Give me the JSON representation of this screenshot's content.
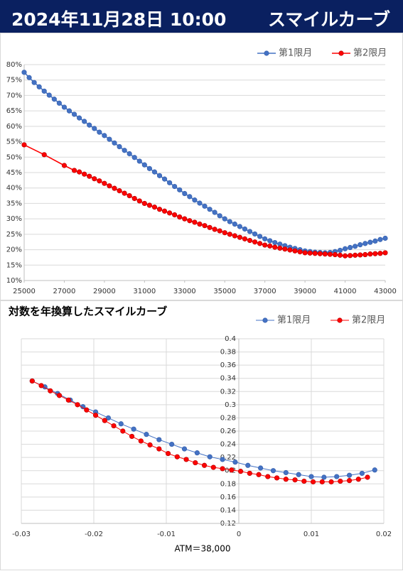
{
  "header": {
    "date": "2024年11月28日 10:00",
    "title": "スマイルカーブ"
  },
  "chart_data": [
    {
      "type": "line",
      "legend": "top-right",
      "grid": "y",
      "xlim": [
        25000,
        43000
      ],
      "xticks": [
        25000,
        27000,
        29000,
        31000,
        33000,
        35000,
        37000,
        39000,
        41000,
        43000
      ],
      "ylim": [
        10,
        80
      ],
      "yticks": [
        {
          "value": 10,
          "label": "10%"
        },
        {
          "value": 15,
          "label": "15%"
        },
        {
          "value": 20,
          "label": "20%"
        },
        {
          "value": 25,
          "label": "25%"
        },
        {
          "value": 30,
          "label": "30%"
        },
        {
          "value": 35,
          "label": "35%"
        },
        {
          "value": 40,
          "label": "40%"
        },
        {
          "value": 45,
          "label": "45%"
        },
        {
          "value": 50,
          "label": "50%"
        },
        {
          "value": 55,
          "label": "55%"
        },
        {
          "value": 60,
          "label": "60%"
        },
        {
          "value": 65,
          "label": "65%"
        },
        {
          "value": 70,
          "label": "70%"
        },
        {
          "value": 75,
          "label": "75%"
        },
        {
          "value": 80,
          "label": "80%"
        }
      ],
      "series": [
        {
          "name": "第1限月",
          "color": "#4472c4",
          "x": [
            25000,
            25250,
            25500,
            25750,
            26000,
            26250,
            26500,
            26750,
            27000,
            27250,
            27500,
            27750,
            28000,
            28250,
            28500,
            28750,
            29000,
            29250,
            29500,
            29750,
            30000,
            30250,
            30500,
            30750,
            31000,
            31250,
            31500,
            31750,
            32000,
            32250,
            32500,
            32750,
            33000,
            33250,
            33500,
            33750,
            34000,
            34250,
            34500,
            34750,
            35000,
            35250,
            35500,
            35750,
            36000,
            36250,
            36500,
            36750,
            37000,
            37250,
            37500,
            37750,
            38000,
            38250,
            38500,
            38750,
            39000,
            39250,
            39500,
            39750,
            40000,
            40250,
            40500,
            40750,
            41000,
            41250,
            41500,
            41750,
            42000,
            42250,
            42500,
            42750,
            43000
          ],
          "values": [
            77.5,
            75.8,
            74.2,
            72.8,
            71.4,
            70.1,
            68.8,
            67.5,
            66.2,
            65.0,
            63.9,
            62.7,
            61.6,
            60.4,
            59.3,
            58.1,
            57.0,
            55.8,
            54.6,
            53.4,
            52.2,
            51.1,
            49.9,
            48.7,
            47.5,
            46.3,
            45.2,
            44.0,
            42.9,
            41.7,
            40.5,
            39.4,
            38.2,
            37.2,
            36.1,
            35.1,
            34.1,
            33.1,
            32.1,
            31.0,
            30.0,
            29.1,
            28.3,
            27.5,
            26.7,
            25.9,
            25.1,
            24.3,
            23.5,
            22.9,
            22.3,
            21.8,
            21.3,
            20.8,
            20.4,
            20.0,
            19.6,
            19.4,
            19.2,
            19.1,
            19.0,
            19.1,
            19.4,
            19.8,
            20.3,
            20.7,
            21.1,
            21.6,
            22.0,
            22.4,
            22.8,
            23.3,
            23.7
          ]
        },
        {
          "name": "第2限月",
          "color": "#ff0000",
          "x": [
            25000,
            26000,
            27000,
            27500,
            27750,
            28000,
            28250,
            28500,
            28750,
            29000,
            29250,
            29500,
            29750,
            30000,
            30250,
            30500,
            30750,
            31000,
            31250,
            31500,
            31750,
            32000,
            32250,
            32500,
            32750,
            33000,
            33250,
            33500,
            33750,
            34000,
            34250,
            34500,
            34750,
            35000,
            35250,
            35500,
            35750,
            36000,
            36250,
            36500,
            36750,
            37000,
            37250,
            37500,
            37750,
            38000,
            38250,
            38500,
            38750,
            39000,
            39250,
            39500,
            39750,
            40000,
            40250,
            40500,
            40750,
            41000,
            41250,
            41500,
            41750,
            42000,
            42250,
            42500,
            42750,
            43000
          ],
          "values": [
            54.0,
            50.8,
            47.3,
            45.7,
            45.2,
            44.5,
            43.8,
            43.0,
            42.3,
            41.5,
            40.7,
            39.9,
            39.1,
            38.3,
            37.5,
            36.6,
            35.8,
            35.0,
            34.4,
            33.8,
            33.1,
            32.5,
            31.9,
            31.3,
            30.6,
            30.0,
            29.4,
            28.9,
            28.3,
            27.8,
            27.2,
            26.6,
            26.1,
            25.5,
            25.0,
            24.5,
            24.0,
            23.5,
            23.0,
            22.5,
            22.0,
            21.5,
            21.2,
            20.8,
            20.5,
            20.2,
            19.9,
            19.6,
            19.3,
            19.0,
            18.9,
            18.8,
            18.7,
            18.6,
            18.5,
            18.4,
            18.2,
            18.0,
            18.1,
            18.2,
            18.3,
            18.4,
            18.6,
            18.7,
            18.8,
            19.0
          ]
        }
      ]
    },
    {
      "type": "line",
      "title": "対数を年換算したスマイルカーブ",
      "x_label": "ATM＝38,000",
      "legend": "top-right",
      "grid": "both",
      "xlim": [
        -0.03,
        0.02
      ],
      "xticks": [
        -0.03,
        -0.02,
        -0.01,
        0,
        0.01,
        0.02
      ],
      "ylim": [
        0.12,
        0.4
      ],
      "yticks": [
        0.12,
        0.14,
        0.16,
        0.18,
        0.2,
        0.22,
        0.24,
        0.26,
        0.28,
        0.3,
        0.32,
        0.34,
        0.36,
        0.38,
        0.4
      ],
      "series": [
        {
          "name": "第1限月",
          "color": "#4472c4",
          "x": [
            -0.0285,
            -0.02675,
            -0.025,
            -0.02325,
            -0.0215,
            -0.01975,
            -0.018,
            -0.01625,
            -0.0145,
            -0.01275,
            -0.011,
            -0.00925,
            -0.0075,
            -0.00575,
            -0.004,
            -0.00225,
            -0.0005,
            0.00125,
            0.003,
            0.00475,
            0.0065,
            0.00825,
            0.01,
            0.01175,
            0.0135,
            0.01525,
            0.017,
            0.01875
          ],
          "values": [
            0.336,
            0.327,
            0.317,
            0.307,
            0.297,
            0.289,
            0.28,
            0.271,
            0.263,
            0.255,
            0.247,
            0.24,
            0.233,
            0.227,
            0.221,
            0.217,
            0.213,
            0.208,
            0.204,
            0.2,
            0.197,
            0.194,
            0.191,
            0.19,
            0.191,
            0.193,
            0.196,
            0.201
          ]
        },
        {
          "name": "第2限月",
          "color": "#ff0000",
          "x": [
            -0.0285,
            -0.02725,
            -0.026,
            -0.02475,
            -0.0235,
            -0.02225,
            -0.021,
            -0.01975,
            -0.0185,
            -0.01725,
            -0.016,
            -0.01475,
            -0.0135,
            -0.01225,
            -0.011,
            -0.00975,
            -0.0085,
            -0.00725,
            -0.006,
            -0.00475,
            -0.0035,
            -0.00225,
            -0.001,
            0.00025,
            0.0015,
            0.00275,
            0.004,
            0.00525,
            0.0065,
            0.00775,
            0.009,
            0.01025,
            0.0115,
            0.01275,
            0.014,
            0.01525,
            0.0165,
            0.01775
          ],
          "values": [
            0.336,
            0.329,
            0.321,
            0.314,
            0.307,
            0.3,
            0.292,
            0.284,
            0.276,
            0.268,
            0.26,
            0.252,
            0.245,
            0.239,
            0.233,
            0.226,
            0.221,
            0.217,
            0.212,
            0.208,
            0.205,
            0.203,
            0.201,
            0.199,
            0.196,
            0.194,
            0.191,
            0.189,
            0.187,
            0.186,
            0.184,
            0.183,
            0.183,
            0.183,
            0.184,
            0.185,
            0.187,
            0.19
          ]
        }
      ]
    }
  ]
}
